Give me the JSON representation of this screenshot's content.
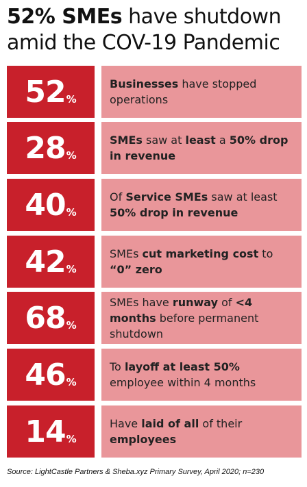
{
  "title": {
    "bold": "52% SMEs",
    "rest1": " have shutdown",
    "line2": "amid the COV-19 Pandemic"
  },
  "colors": {
    "accent_red": "#c8202b",
    "panel_pink": "#e9969a"
  },
  "rows": [
    {
      "value": "52",
      "unit": "%",
      "parts": [
        {
          "t": "Businesses",
          "b": true
        },
        {
          "t": " have stopped operations",
          "b": false
        }
      ]
    },
    {
      "value": "28",
      "unit": "%",
      "parts": [
        {
          "t": "SMEs",
          "b": true
        },
        {
          "t": " saw at  ",
          "b": false
        },
        {
          "t": "least",
          "b": true
        },
        {
          "t": " a ",
          "b": false
        },
        {
          "t": "50% drop in revenue",
          "b": true
        }
      ]
    },
    {
      "value": "40",
      "unit": "%",
      "parts": [
        {
          "t": "Of  ",
          "b": false
        },
        {
          "t": "Service SMEs",
          "b": true
        },
        {
          "t": " saw at least ",
          "b": false
        },
        {
          "t": "50% drop in revenue",
          "b": true
        }
      ]
    },
    {
      "value": "42",
      "unit": "%",
      "parts": [
        {
          "t": "SMEs  ",
          "b": false
        },
        {
          "t": "cut marketing cost",
          "b": true
        },
        {
          "t": " to ",
          "b": false
        },
        {
          "t": "“0” zero",
          "b": true
        }
      ]
    },
    {
      "value": "68",
      "unit": "%",
      "parts": [
        {
          "t": "SMEs have   ",
          "b": false
        },
        {
          "t": "runway",
          "b": true
        },
        {
          "t": " of  ",
          "b": false
        },
        {
          "t": "<4 months",
          "b": true
        },
        {
          "t": " before permanent shutdown",
          "b": false
        }
      ]
    },
    {
      "value": "46",
      "unit": "%",
      "parts": [
        {
          "t": "To  ",
          "b": false
        },
        {
          "t": "layoff at least 50%",
          "b": true
        },
        {
          "t": " employee within 4 months",
          "b": false
        }
      ]
    },
    {
      "value": "14",
      "unit": "%",
      "parts": [
        {
          "t": "Have  ",
          "b": false
        },
        {
          "t": "laid of all",
          "b": true
        },
        {
          "t": " of their ",
          "b": false
        },
        {
          "t": "employees",
          "b": true
        }
      ]
    }
  ],
  "source": "Source: LightCastle Partners & Sheba.xyz Primary Survey, April 2020; n=230"
}
